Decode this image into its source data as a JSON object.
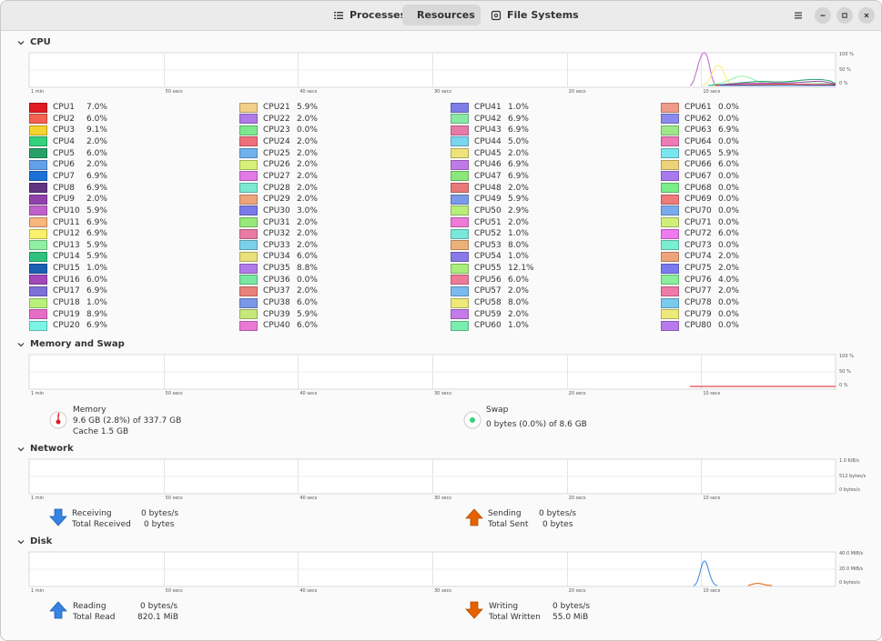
{
  "tabs": [
    {
      "label": "Processes",
      "icon": "list-icon"
    },
    {
      "label": "Resources",
      "icon": "gauge-icon"
    },
    {
      "label": "File Systems",
      "icon": "disk-icon"
    }
  ],
  "time_ticks": [
    "1 min",
    "50 secs",
    "40 secs",
    "30 secs",
    "20 secs",
    "10 secs"
  ],
  "cpu": {
    "title": "CPU",
    "y_ticks": [
      "100 %",
      "50 %",
      "0 %"
    ],
    "items": [
      {
        "name": "CPU1",
        "value": "7.0%",
        "color": "#e01b24"
      },
      {
        "name": "CPU2",
        "value": "6.0%",
        "color": "#f66151"
      },
      {
        "name": "CPU3",
        "value": "9.1%",
        "color": "#f6d32d"
      },
      {
        "name": "CPU4",
        "value": "2.0%",
        "color": "#33d17a"
      },
      {
        "name": "CPU5",
        "value": "6.0%",
        "color": "#26a269"
      },
      {
        "name": "CPU6",
        "value": "2.0%",
        "color": "#62a0ea"
      },
      {
        "name": "CPU7",
        "value": "6.9%",
        "color": "#1c71d8"
      },
      {
        "name": "CPU8",
        "value": "6.9%",
        "color": "#613583"
      },
      {
        "name": "CPU9",
        "value": "2.0%",
        "color": "#9141ac"
      },
      {
        "name": "CPU10",
        "value": "5.9%",
        "color": "#c061cb"
      },
      {
        "name": "CPU11",
        "value": "6.9%",
        "color": "#f8b57c"
      },
      {
        "name": "CPU12",
        "value": "6.9%",
        "color": "#f9f06b"
      },
      {
        "name": "CPU13",
        "value": "5.9%",
        "color": "#8ff0a4"
      },
      {
        "name": "CPU14",
        "value": "5.9%",
        "color": "#2ec27e"
      },
      {
        "name": "CPU15",
        "value": "1.0%",
        "color": "#1a5fb4"
      },
      {
        "name": "CPU16",
        "value": "6.0%",
        "color": "#a347ba"
      },
      {
        "name": "CPU17",
        "value": "6.9%",
        "color": "#7f6fd8"
      },
      {
        "name": "CPU18",
        "value": "1.0%",
        "color": "#b8f07a"
      },
      {
        "name": "CPU19",
        "value": "8.9%",
        "color": "#e66cc6"
      },
      {
        "name": "CPU20",
        "value": "6.9%",
        "color": "#7cf5e6"
      },
      {
        "name": "CPU21",
        "value": "5.9%",
        "color": "#f1cf8a"
      },
      {
        "name": "CPU22",
        "value": "2.0%",
        "color": "#b07be8"
      },
      {
        "name": "CPU23",
        "value": "0.0%",
        "color": "#7ee88e"
      },
      {
        "name": "CPU24",
        "value": "2.0%",
        "color": "#ee6f7a"
      },
      {
        "name": "CPU25",
        "value": "2.0%",
        "color": "#6fb2ee"
      },
      {
        "name": "CPU26",
        "value": "2.0%",
        "color": "#d7f07a"
      },
      {
        "name": "CPU27",
        "value": "2.0%",
        "color": "#e27ae8"
      },
      {
        "name": "CPU28",
        "value": "2.0%",
        "color": "#7ce8d0"
      },
      {
        "name": "CPU29",
        "value": "2.0%",
        "color": "#f0a47a"
      },
      {
        "name": "CPU30",
        "value": "3.0%",
        "color": "#7a7ae8"
      },
      {
        "name": "CPU31",
        "value": "2.0%",
        "color": "#98e87a"
      },
      {
        "name": "CPU32",
        "value": "2.0%",
        "color": "#e87aa4"
      },
      {
        "name": "CPU33",
        "value": "2.0%",
        "color": "#7ad0e8"
      },
      {
        "name": "CPU34",
        "value": "6.0%",
        "color": "#e8e07a"
      },
      {
        "name": "CPU35",
        "value": "8.8%",
        "color": "#b27ae8"
      },
      {
        "name": "CPU36",
        "value": "0.0%",
        "color": "#7ae8a0"
      },
      {
        "name": "CPU37",
        "value": "2.0%",
        "color": "#e8827a"
      },
      {
        "name": "CPU38",
        "value": "6.0%",
        "color": "#7a98e8"
      },
      {
        "name": "CPU39",
        "value": "5.9%",
        "color": "#c6e87a"
      },
      {
        "name": "CPU40",
        "value": "6.0%",
        "color": "#e87ad6"
      },
      {
        "name": "CPU41",
        "value": "1.0%",
        "color": "#7e7ee8"
      },
      {
        "name": "CPU42",
        "value": "6.9%",
        "color": "#88e8a4"
      },
      {
        "name": "CPU43",
        "value": "6.9%",
        "color": "#e87aa8"
      },
      {
        "name": "CPU44",
        "value": "5.0%",
        "color": "#7ad6ee"
      },
      {
        "name": "CPU45",
        "value": "2.0%",
        "color": "#eee27a"
      },
      {
        "name": "CPU46",
        "value": "6.9%",
        "color": "#c07ae8"
      },
      {
        "name": "CPU47",
        "value": "6.9%",
        "color": "#8ae87a"
      },
      {
        "name": "CPU48",
        "value": "2.0%",
        "color": "#e8787a"
      },
      {
        "name": "CPU49",
        "value": "5.9%",
        "color": "#7a9ae8"
      },
      {
        "name": "CPU50",
        "value": "2.9%",
        "color": "#b8ee7a"
      },
      {
        "name": "CPU51",
        "value": "2.0%",
        "color": "#ee7ad8"
      },
      {
        "name": "CPU52",
        "value": "1.0%",
        "color": "#7ae8dc"
      },
      {
        "name": "CPU53",
        "value": "8.0%",
        "color": "#eeb07a"
      },
      {
        "name": "CPU54",
        "value": "1.0%",
        "color": "#8a7ae8"
      },
      {
        "name": "CPU55",
        "value": "12.1%",
        "color": "#a8ee7a"
      },
      {
        "name": "CPU56",
        "value": "6.0%",
        "color": "#ee7a98"
      },
      {
        "name": "CPU57",
        "value": "2.0%",
        "color": "#7abaee"
      },
      {
        "name": "CPU58",
        "value": "8.0%",
        "color": "#eee87a"
      },
      {
        "name": "CPU59",
        "value": "2.0%",
        "color": "#c47ae8"
      },
      {
        "name": "CPU60",
        "value": "1.0%",
        "color": "#7aeeb0"
      },
      {
        "name": "CPU61",
        "value": "0.0%",
        "color": "#f09a8a"
      },
      {
        "name": "CPU62",
        "value": "0.0%",
        "color": "#8a8aee"
      },
      {
        "name": "CPU63",
        "value": "6.9%",
        "color": "#9ee88a"
      },
      {
        "name": "CPU64",
        "value": "0.0%",
        "color": "#ee7ab8"
      },
      {
        "name": "CPU65",
        "value": "5.9%",
        "color": "#7ae6ee"
      },
      {
        "name": "CPU66",
        "value": "6.0%",
        "color": "#eed27a"
      },
      {
        "name": "CPU67",
        "value": "0.0%",
        "color": "#a87aee"
      },
      {
        "name": "CPU68",
        "value": "0.0%",
        "color": "#7aee8a"
      },
      {
        "name": "CPU69",
        "value": "0.0%",
        "color": "#ee7a7a"
      },
      {
        "name": "CPU70",
        "value": "0.0%",
        "color": "#7aaaee"
      },
      {
        "name": "CPU71",
        "value": "0.0%",
        "color": "#d2ee7a"
      },
      {
        "name": "CPU72",
        "value": "6.0%",
        "color": "#ee7aee"
      },
      {
        "name": "CPU73",
        "value": "0.0%",
        "color": "#7aeed2"
      },
      {
        "name": "CPU74",
        "value": "2.0%",
        "color": "#eea47a"
      },
      {
        "name": "CPU75",
        "value": "2.0%",
        "color": "#7a7aee"
      },
      {
        "name": "CPU76",
        "value": "4.0%",
        "color": "#8aee9a"
      },
      {
        "name": "CPU77",
        "value": "2.0%",
        "color": "#ee7aa8"
      },
      {
        "name": "CPU78",
        "value": "0.0%",
        "color": "#7acaee"
      },
      {
        "name": "CPU79",
        "value": "0.0%",
        "color": "#eeea7a"
      },
      {
        "name": "CPU80",
        "value": "0.0%",
        "color": "#b87aee"
      }
    ]
  },
  "memory": {
    "title": "Memory and Swap",
    "y_ticks": [
      "100 %",
      "50 %",
      "0 %"
    ],
    "memory_label": "Memory",
    "memory_value": "9.6 GB (2.8%) of 337.7 GB",
    "cache_value": "Cache 1.5 GB",
    "memory_color": "#e01b24",
    "swap_label": "Swap",
    "swap_value": "0 bytes (0.0%) of 8.6 GB",
    "swap_color": "#33d17a"
  },
  "network": {
    "title": "Network",
    "y_ticks": [
      "1.0 KiB/s",
      "512 bytes/s",
      "0 bytes/s"
    ],
    "receiving_label": "Receiving",
    "receiving_value": "0 bytes/s",
    "total_received_label": "Total Received",
    "total_received_value": "0 bytes",
    "sending_label": "Sending",
    "sending_value": "0 bytes/s",
    "total_sent_label": "Total Sent",
    "total_sent_value": "0 bytes",
    "receive_color": "#3584e4",
    "send_color": "#e66100"
  },
  "disk": {
    "title": "Disk",
    "y_ticks": [
      "40.0 MiB/s",
      "20.0 MiB/s",
      "0 bytes/s"
    ],
    "reading_label": "Reading",
    "reading_value": "0 bytes/s",
    "total_read_label": "Total Read",
    "total_read_value": "820.1 MiB",
    "writing_label": "Writing",
    "writing_value": "0 bytes/s",
    "total_written_label": "Total Written",
    "total_written_value": "55.0 MiB",
    "read_color": "#3584e4",
    "write_color": "#e66100"
  }
}
